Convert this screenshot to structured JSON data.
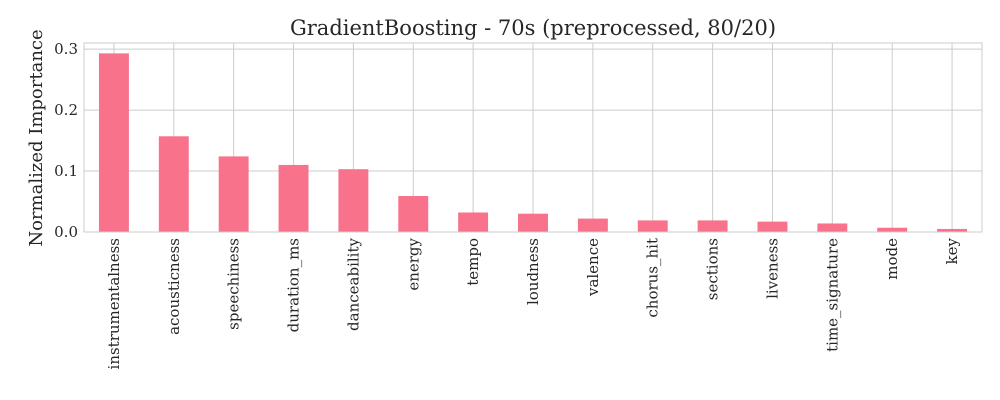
{
  "chart_data": {
    "type": "bar",
    "title": "GradientBoosting - 70s (preprocessed, 80/20)",
    "xlabel": "",
    "ylabel": "Normalized Importance",
    "categories": [
      "instrumentalness",
      "acousticness",
      "speechiness",
      "duration_ms",
      "danceability",
      "energy",
      "tempo",
      "loudness",
      "valence",
      "chorus_hit",
      "sections",
      "liveness",
      "time_signature",
      "mode",
      "key"
    ],
    "values": [
      0.293,
      0.157,
      0.124,
      0.11,
      0.103,
      0.059,
      0.032,
      0.03,
      0.022,
      0.019,
      0.019,
      0.017,
      0.014,
      0.007,
      0.005
    ],
    "ylim": [
      0,
      0.31
    ],
    "yticks": [
      0.0,
      0.1,
      0.2,
      0.3
    ],
    "ytick_labels": [
      "0.0",
      "0.1",
      "0.2",
      "0.3"
    ],
    "grid": true,
    "bar_color": "#f7728a"
  }
}
